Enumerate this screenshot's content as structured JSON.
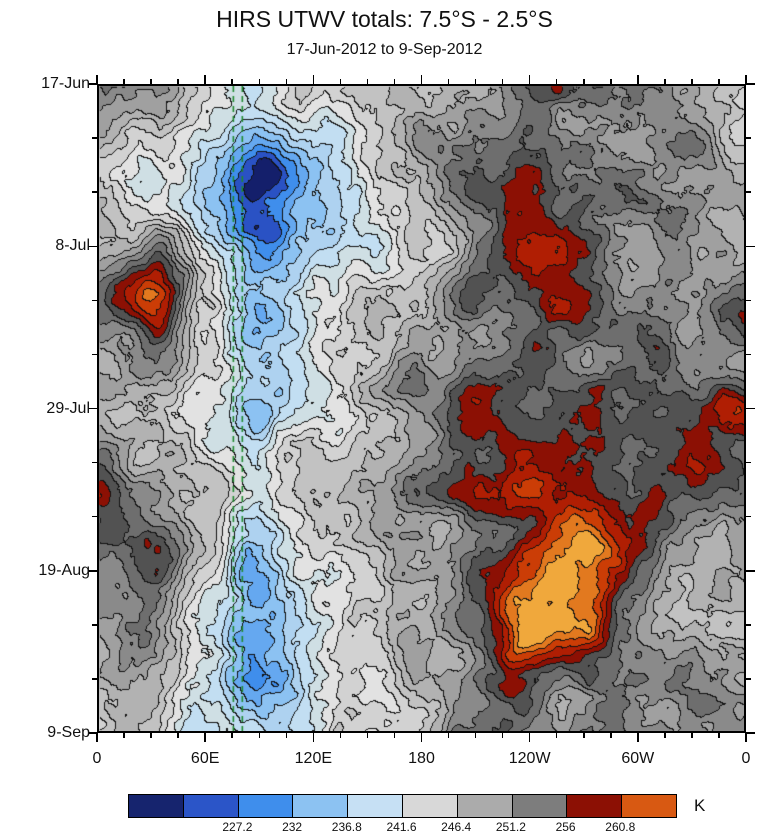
{
  "header": {
    "title": "HIRS UTWV totals: 7.5°S - 2.5°S",
    "subtitle": "17-Jun-2012 to 9-Sep-2012"
  },
  "chart_data": {
    "type": "heatmap",
    "variant": "hovmoller-filled-contour",
    "title": "HIRS UTWV totals: 7.5°S - 2.5°S",
    "subtitle": "17-Jun-2012 to 9-Sep-2012",
    "units": "K",
    "x_axis": {
      "ticks": [
        "0",
        "60E",
        "120E",
        "180",
        "120W",
        "60W",
        "0"
      ],
      "range_deg": [
        0,
        360
      ],
      "minor_ticks_per_major": 3
    },
    "y_axis": {
      "ticks": [
        "17-Jun",
        "8-Jul",
        "29-Jul",
        "19-Aug",
        "9-Sep"
      ],
      "direction": "time-downward",
      "minor_ticks_per_major": 2
    },
    "colorbar": {
      "labels": [
        "227.2",
        "232",
        "236.8",
        "241.6",
        "246.4",
        "251.2",
        "256",
        "260.8"
      ],
      "colors": [
        "#16246e",
        "#2b55c8",
        "#3f8eec",
        "#8cc2f2",
        "#c6e0f4",
        "#d8d8d8",
        "#ababab",
        "#7d7d7d",
        "#8c1004",
        "#d85912"
      ],
      "first_label_after_segment": 2
    },
    "reference_lines": {
      "color": "#1f8a2f",
      "style": "dashed",
      "longitudes_deg": [
        75,
        80
      ]
    },
    "render_palette": {
      "thresholds": [
        224.8,
        227.2,
        229.6,
        232,
        234.4,
        236.8,
        239.2,
        241.6,
        244,
        246.4,
        248.8,
        251.2,
        253.6,
        256,
        258.4,
        260.8,
        263.2,
        265.6,
        268,
        270.4
      ],
      "colors": [
        "#141f6b",
        "#2a52c4",
        "#3f8eec",
        "#65a8f0",
        "#8cc2f2",
        "#aed2f0",
        "#c2def2",
        "#cfdfe4",
        "#e2e2e2",
        "#d2d2d2",
        "#c2c2c2",
        "#b2b2b2",
        "#a0a0a0",
        "#8a8a8a",
        "#6e6e6e",
        "#525252",
        "#8c1004",
        "#b01e03",
        "#cb3d06",
        "#e2791f",
        "#f0a83c"
      ],
      "contour_line_color": "#121212"
    },
    "grid_x_deg": [
      0,
      30,
      60,
      90,
      120,
      150,
      180,
      210,
      240,
      270,
      300,
      330,
      360
    ],
    "grid_y_day": [
      0,
      7,
      14,
      21,
      28,
      35,
      42,
      49,
      56,
      63,
      70,
      77,
      84
    ],
    "values_note": "approximate brightness temperature (K) read from the filled contours",
    "values_grid": [
      [
        252,
        249,
        243,
        237,
        245,
        250,
        251,
        253,
        255,
        253,
        256,
        254,
        252
      ],
      [
        250,
        247,
        241,
        233,
        243,
        249,
        252,
        255,
        257,
        254,
        252,
        256,
        251
      ],
      [
        252,
        246,
        240,
        231,
        241,
        246,
        250,
        257,
        259,
        254,
        256,
        252,
        254
      ],
      [
        250,
        255,
        241,
        229,
        238,
        244,
        250,
        259,
        263,
        256,
        252,
        254,
        252
      ],
      [
        254,
        263,
        243,
        233,
        240,
        246,
        252,
        262,
        258,
        261,
        254,
        252,
        257
      ],
      [
        252,
        257,
        245,
        237,
        242,
        244,
        250,
        256,
        263,
        256,
        259,
        254,
        252
      ],
      [
        250,
        252,
        243,
        237,
        240,
        246,
        252,
        261,
        258,
        263,
        256,
        258,
        261
      ],
      [
        255,
        250,
        245,
        239,
        242,
        246,
        250,
        254,
        261,
        258,
        254,
        257,
        254
      ],
      [
        257,
        252,
        243,
        235,
        240,
        244,
        248,
        252,
        256,
        261,
        256,
        252,
        252
      ],
      [
        252,
        259,
        245,
        233,
        240,
        244,
        250,
        257,
        263,
        265,
        258,
        254,
        254
      ],
      [
        250,
        255,
        243,
        235,
        238,
        242,
        248,
        255,
        267,
        263,
        256,
        252,
        250
      ],
      [
        252,
        250,
        241,
        233,
        240,
        244,
        250,
        252,
        258,
        256,
        254,
        256,
        252
      ],
      [
        250,
        248,
        243,
        237,
        242,
        246,
        248,
        254,
        256,
        254,
        252,
        254,
        254
      ]
    ]
  }
}
